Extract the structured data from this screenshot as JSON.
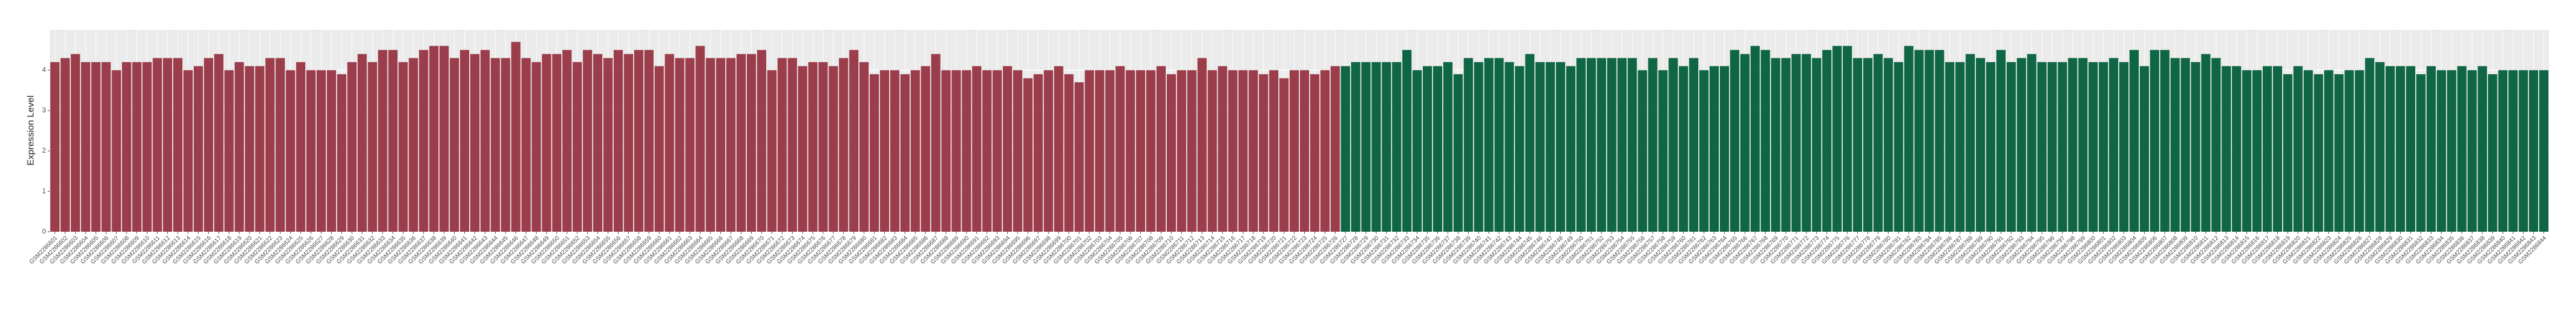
{
  "chart_data": {
    "type": "bar",
    "y_label": "Expression Level",
    "ylim": [
      0,
      5
    ],
    "yticks": [
      0,
      1,
      2,
      3,
      4
    ],
    "grid": true,
    "series": [
      {
        "color": "#9b3d4a",
        "categories": [
          "GSM2286601",
          "GSM2286602",
          "GSM2286603",
          "GSM2286604",
          "GSM2286605",
          "GSM2286606",
          "GSM2286607",
          "GSM2286608",
          "GSM2286609",
          "GSM2286610",
          "GSM2286611",
          "GSM2286612",
          "GSM2286613",
          "GSM2286614",
          "GSM2286615",
          "GSM2286616",
          "GSM2286617",
          "GSM2286618",
          "GSM2286619",
          "GSM2286620",
          "GSM2286621",
          "GSM2286622",
          "GSM2286623",
          "GSM2286624",
          "GSM2286625",
          "GSM2286626",
          "GSM2286627",
          "GSM2286628",
          "GSM2286629",
          "GSM2286630",
          "GSM2286631",
          "GSM2286632",
          "GSM2286633",
          "GSM2286634",
          "GSM2286635",
          "GSM2286636",
          "GSM2286637",
          "GSM2286638",
          "GSM2286639",
          "GSM2286640",
          "GSM2286641",
          "GSM2286642",
          "GSM2286643",
          "GSM2286644",
          "GSM2286645",
          "GSM2286646",
          "GSM2286647",
          "GSM2286648",
          "GSM2286649",
          "GSM2286650",
          "GSM2286651",
          "GSM2286652",
          "GSM2286653",
          "GSM2286654",
          "GSM2286655",
          "GSM2286656",
          "GSM2286657",
          "GSM2286658",
          "GSM2286659",
          "GSM2286660",
          "GSM2286661",
          "GSM2286662",
          "GSM2286663",
          "GSM2286664",
          "GSM2286665",
          "GSM2286666",
          "GSM2286667",
          "GSM2286668",
          "GSM2286669",
          "GSM2286670",
          "GSM2286671",
          "GSM2286672",
          "GSM2286673",
          "GSM2286674",
          "GSM2286675",
          "GSM2286676",
          "GSM2286677",
          "GSM2286678",
          "GSM2286679",
          "GSM2286680",
          "GSM2286681",
          "GSM2286682",
          "GSM2286683",
          "GSM2286684",
          "GSM2286685",
          "GSM2286686",
          "GSM2286687",
          "GSM2286688",
          "GSM2286689",
          "GSM2286690",
          "GSM2286691",
          "GSM2286692",
          "GSM2286693",
          "GSM2286694",
          "GSM2286695",
          "GSM2286696",
          "GSM2286697",
          "GSM2286698",
          "GSM2286699",
          "GSM2286700",
          "GSM2286701",
          "GSM2286702",
          "GSM2286703",
          "GSM2286704",
          "GSM2286705",
          "GSM2286706",
          "GSM2286707",
          "GSM2286708",
          "GSM2286709",
          "GSM2286710",
          "GSM2286711",
          "GSM2286712",
          "GSM2286713",
          "GSM2286714",
          "GSM2286715",
          "GSM2286716",
          "GSM2286717",
          "GSM2286718",
          "GSM2286719",
          "GSM2286720",
          "GSM2286721",
          "GSM2286722",
          "GSM2286723",
          "GSM2286724",
          "GSM2286725",
          "GSM2286726"
        ],
        "values": [
          4.2,
          4.3,
          4.4,
          4.2,
          4.2,
          4.2,
          4.0,
          4.2,
          4.2,
          4.2,
          4.3,
          4.3,
          4.3,
          4.0,
          4.1,
          4.3,
          4.4,
          4.0,
          4.2,
          4.1,
          4.1,
          4.3,
          4.3,
          4.0,
          4.2,
          4.0,
          4.0,
          4.0,
          3.9,
          4.2,
          4.4,
          4.2,
          4.5,
          4.5,
          4.2,
          4.3,
          4.5,
          4.6,
          4.6,
          4.3,
          4.5,
          4.4,
          4.5,
          4.3,
          4.3,
          4.7,
          4.3,
          4.2,
          4.4,
          4.4,
          4.5,
          4.2,
          4.5,
          4.4,
          4.3,
          4.5,
          4.4,
          4.5,
          4.5,
          4.1,
          4.4,
          4.3,
          4.3,
          4.6,
          4.3,
          4.3,
          4.3,
          4.4,
          4.4,
          4.5,
          4.0,
          4.3,
          4.3,
          4.1,
          4.2,
          4.2,
          4.1,
          4.3,
          4.5,
          4.2,
          3.9,
          4.0,
          4.0,
          3.9,
          4.0,
          4.1,
          4.4,
          4.0,
          4.0,
          4.0,
          4.1,
          4.0,
          4.0,
          4.1,
          4.0,
          3.8,
          3.9,
          4.0,
          4.1,
          3.9,
          3.7,
          4.0,
          4.0,
          4.0,
          4.1,
          4.0,
          4.0,
          4.0,
          4.1,
          3.9,
          4.0,
          4.0,
          4.3,
          4.0,
          4.1,
          4.0,
          4.0,
          4.0,
          3.9,
          4.0,
          3.8,
          4.0,
          4.0,
          3.9,
          4.0,
          4.1
        ]
      },
      {
        "color": "#0f6644",
        "categories": [
          "GSM2286727",
          "GSM2286728",
          "GSM2286729",
          "GSM2286730",
          "GSM2286731",
          "GSM2286732",
          "GSM2286733",
          "GSM2286734",
          "GSM2286735",
          "GSM2286736",
          "GSM2286737",
          "GSM2286738",
          "GSM2286739",
          "GSM2286740",
          "GSM2286741",
          "GSM2286742",
          "GSM2286743",
          "GSM2286744",
          "GSM2286745",
          "GSM2286746",
          "GSM2286747",
          "GSM2286748",
          "GSM2286749",
          "GSM2286750",
          "GSM2286751",
          "GSM2286752",
          "GSM2286753",
          "GSM2286754",
          "GSM2286755",
          "GSM2286756",
          "GSM2286757",
          "GSM2286758",
          "GSM2286759",
          "GSM2286760",
          "GSM2286761",
          "GSM2286762",
          "GSM2286763",
          "GSM2286764",
          "GSM2286765",
          "GSM2286766",
          "GSM2286767",
          "GSM2286768",
          "GSM2286769",
          "GSM2286770",
          "GSM2286771",
          "GSM2286772",
          "GSM2286773",
          "GSM2286774",
          "GSM2286775",
          "GSM2286776",
          "GSM2286777",
          "GSM2286778",
          "GSM2286779",
          "GSM2286780",
          "GSM2286781",
          "GSM2286782",
          "GSM2286783",
          "GSM2286784",
          "GSM2286785",
          "GSM2286786",
          "GSM2286787",
          "GSM2286788",
          "GSM2286789",
          "GSM2286790",
          "GSM2286791",
          "GSM2286792",
          "GSM2286793",
          "GSM2286794",
          "GSM2286795",
          "GSM2286796",
          "GSM2286797",
          "GSM2286798",
          "GSM2286799",
          "GSM2286800",
          "GSM2286801",
          "GSM2286802",
          "GSM2286803",
          "GSM2286804",
          "GSM2286805",
          "GSM2286806",
          "GSM2286807",
          "GSM2286808",
          "GSM2286809",
          "GSM2286810",
          "GSM2286811",
          "GSM2286812",
          "GSM2286813",
          "GSM2286814",
          "GSM2286815",
          "GSM2286816",
          "GSM2286817",
          "GSM2286818",
          "GSM2286819",
          "GSM2286820",
          "GSM2286821",
          "GSM2286822",
          "GSM2286823",
          "GSM2286824",
          "GSM2286825",
          "GSM2286826",
          "GSM2286827",
          "GSM2286828",
          "GSM2286829",
          "GSM2286830",
          "GSM2286831",
          "GSM2286832",
          "GSM2286833",
          "GSM2286834",
          "GSM2286835",
          "GSM2286836",
          "GSM2286837",
          "GSM2286838",
          "GSM2286839",
          "GSM2286840",
          "GSM2286841",
          "GSM2286842",
          "GSM2286843",
          "GSM2286844"
        ],
        "values": [
          4.1,
          4.2,
          4.2,
          4.2,
          4.2,
          4.2,
          4.5,
          4.0,
          4.1,
          4.1,
          4.2,
          3.9,
          4.3,
          4.2,
          4.3,
          4.3,
          4.2,
          4.1,
          4.4,
          4.2,
          4.2,
          4.2,
          4.1,
          4.3,
          4.3,
          4.3,
          4.3,
          4.3,
          4.3,
          4.0,
          4.3,
          4.0,
          4.3,
          4.1,
          4.3,
          4.0,
          4.1,
          4.1,
          4.5,
          4.4,
          4.6,
          4.5,
          4.3,
          4.3,
          4.4,
          4.4,
          4.3,
          4.5,
          4.6,
          4.6,
          4.3,
          4.3,
          4.4,
          4.3,
          4.2,
          4.6,
          4.5,
          4.5,
          4.5,
          4.2,
          4.2,
          4.4,
          4.3,
          4.2,
          4.5,
          4.2,
          4.3,
          4.4,
          4.2,
          4.2,
          4.2,
          4.3,
          4.3,
          4.2,
          4.2,
          4.3,
          4.2,
          4.5,
          4.1,
          4.5,
          4.5,
          4.3,
          4.3,
          4.2,
          4.4,
          4.3,
          4.1,
          4.1,
          4.0,
          4.0,
          4.1,
          4.1,
          3.9,
          4.1,
          4.0,
          3.9,
          4.0,
          3.9,
          4.0,
          4.0,
          4.3,
          4.2,
          4.1,
          4.1,
          4.1,
          3.9,
          4.1,
          4.0,
          4.0,
          4.1,
          4.0,
          4.1,
          3.9,
          4.0,
          4.0,
          4.0,
          4.0,
          4.0
        ]
      }
    ]
  }
}
